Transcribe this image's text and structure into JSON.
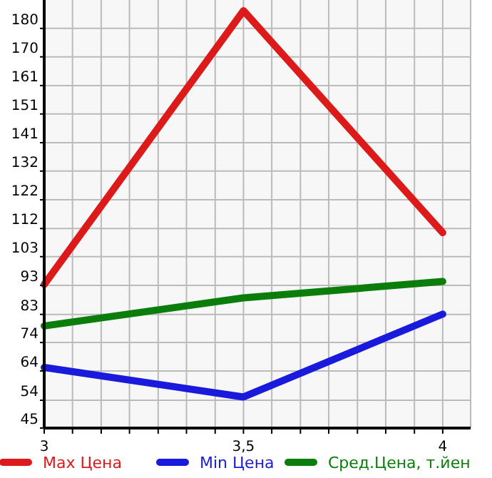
{
  "chart_data": {
    "type": "line",
    "x": [
      3,
      3.5,
      4
    ],
    "xlim": [
      3,
      4.07
    ],
    "xticks": [
      3,
      {
        "value": 3.071,
        "label": null
      },
      {
        "value": 3.143,
        "label": null
      },
      {
        "value": 3.214,
        "label": null
      },
      {
        "value": 3.286,
        "label": null
      },
      {
        "value": 3.357,
        "label": null
      },
      {
        "value": 3.429,
        "label": null
      },
      {
        "value": 3.5,
        "label": "3,5"
      },
      {
        "value": 3.571,
        "label": null
      },
      {
        "value": 3.643,
        "label": null
      },
      {
        "value": 3.714,
        "label": null
      },
      {
        "value": 3.786,
        "label": null
      },
      {
        "value": 3.857,
        "label": null
      },
      {
        "value": 3.929,
        "label": null
      },
      4
    ],
    "ylim": [
      45,
      189.6
    ],
    "yticks": [
      45,
      {
        "value": 54.4,
        "label": "54"
      },
      {
        "value": 64.3,
        "label": "64"
      },
      {
        "value": 73.9,
        "label": "74"
      },
      {
        "value": 83.4,
        "label": "83"
      },
      {
        "value": 93.2,
        "label": "93"
      },
      {
        "value": 102.9,
        "label": "103"
      },
      {
        "value": 112.4,
        "label": "112"
      },
      {
        "value": 122.1,
        "label": "122"
      },
      {
        "value": 131.8,
        "label": "132"
      },
      {
        "value": 141.4,
        "label": "141"
      },
      {
        "value": 151.1,
        "label": "151"
      },
      {
        "value": 160.7,
        "label": "161"
      },
      {
        "value": 170.4,
        "label": "170"
      },
      180
    ],
    "grid": true,
    "legend": "bottom",
    "line_style": "solid",
    "series": [
      {
        "name": "Max Цена",
        "color": "#dd1a1a",
        "values": [
          93.5,
          186,
          111
        ]
      },
      {
        "name": "Min Цена",
        "color": "#1a1add",
        "values": [
          65.5,
          55.5,
          83.5
        ]
      },
      {
        "name": "Сред.Цена, т.йен",
        "color": "#0b7d0b",
        "values": [
          79.5,
          89,
          94.5
        ]
      }
    ]
  }
}
